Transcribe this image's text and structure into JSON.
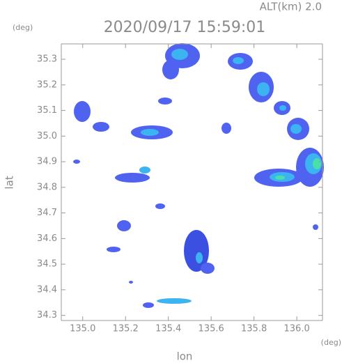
{
  "header": {
    "altitude": "ALT(km)  2.0",
    "timestamp": "2020/09/17 15:59:01"
  },
  "chart_data": {
    "type": "map",
    "x_label": "lon",
    "y_label": "lat",
    "x_unit": "(deg)",
    "y_unit": "(deg)",
    "xlim": [
      134.9,
      136.12
    ],
    "xticks": [
      {
        "value": 135,
        "label": "135.0"
      },
      135.2,
      135.4,
      135.6,
      135.8,
      {
        "value": 136,
        "label": "136.0"
      }
    ],
    "ylim": [
      34.28,
      35.36
    ],
    "yticks": [
      34.3,
      34.4,
      34.5,
      34.6,
      34.7,
      34.8,
      34.9,
      {
        "value": 35,
        "label": "35.0"
      },
      35.1,
      35.2,
      35.3
    ]
  }
}
